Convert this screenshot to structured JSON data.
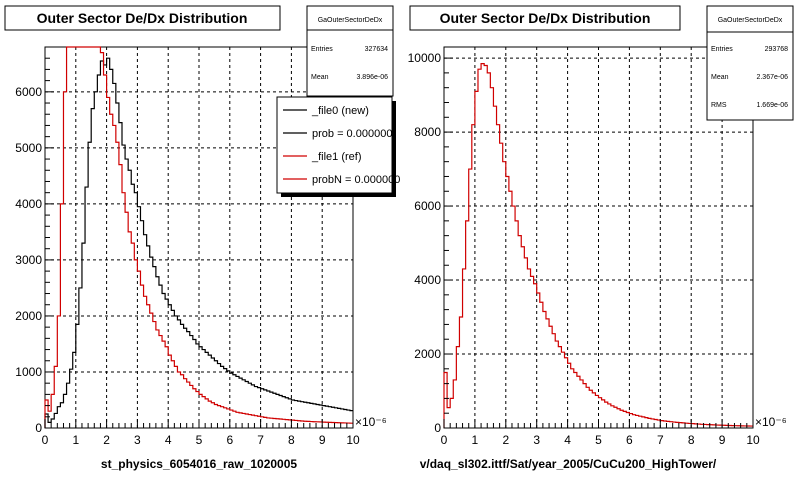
{
  "chart_data": [
    {
      "type": "histogram",
      "title": "Outer Sector De/Dx Distribution",
      "xlabel": "st_physics_6054016_raw_1020005",
      "x_exponent": "×10⁻⁶",
      "xlim": [
        0,
        10
      ],
      "ylim": [
        0,
        6800
      ],
      "xticks": [
        0,
        1,
        2,
        3,
        4,
        5,
        6,
        7,
        8,
        9,
        10
      ],
      "yticks": [
        0,
        1000,
        2000,
        3000,
        4000,
        5000,
        6000
      ],
      "grid": true,
      "bin_width": 0.1,
      "stats": {
        "name": "GaOuterSectorDeDx",
        "rows": [
          {
            "label": "Entries",
            "value": "327634"
          },
          {
            "label": "Mean",
            "value": "3.896e-06"
          }
        ]
      },
      "legend": {
        "placement": "top-right",
        "entries": [
          {
            "label": "_file0 (new)",
            "color": "#000000"
          },
          {
            "label": "prob = 0.000000",
            "color": "#000000"
          },
          {
            "label": "_file1 (ref)",
            "color": "#d00000"
          },
          {
            "label": "probN = 0.000000",
            "color": "#d00000"
          }
        ]
      },
      "series": [
        {
          "color": "#000000",
          "x_start": 0,
          "values": [
            250,
            100,
            160,
            260,
            380,
            450,
            600,
            800,
            1050,
            1350,
            1850,
            2500,
            3300,
            4300,
            5100,
            5700,
            6000,
            6300,
            6550,
            6480,
            6600,
            6400,
            6150,
            5800,
            5450,
            5050,
            4800,
            4600,
            4350,
            4200,
            3950,
            3700,
            3450,
            3250,
            3050,
            2880,
            2700,
            2550,
            2400,
            2300,
            2200,
            2100,
            2000,
            1930,
            1850,
            1780,
            1720,
            1650,
            1580,
            1500,
            1450,
            1400,
            1350,
            1300,
            1250,
            1200,
            1150,
            1100,
            1060,
            1020,
            980,
            950,
            920,
            890,
            860,
            830,
            800,
            770,
            740,
            720,
            700,
            680,
            660,
            640,
            620,
            600,
            580,
            560,
            540,
            520,
            500,
            490,
            480,
            470,
            460,
            450,
            440,
            430,
            420,
            410,
            400,
            390,
            380,
            370,
            360,
            350,
            340,
            330,
            320,
            310
          ]
        },
        {
          "color": "#d00000",
          "x_start": 0,
          "values": [
            500,
            300,
            600,
            1100,
            2000,
            4000,
            6000,
            6800,
            6800,
            6800,
            6800,
            6800,
            6800,
            6800,
            6800,
            6800,
            6800,
            6800,
            6700,
            6300,
            5900,
            5600,
            5400,
            5100,
            4700,
            4200,
            3850,
            3500,
            3300,
            3000,
            2800,
            2550,
            2350,
            2200,
            2050,
            1900,
            1750,
            1650,
            1550,
            1450,
            1300,
            1200,
            1100,
            1000,
            950,
            880,
            820,
            760,
            700,
            650,
            600,
            560,
            520,
            480,
            450,
            420,
            400,
            380,
            360,
            340,
            320,
            300,
            280,
            270,
            260,
            250,
            240,
            230,
            220,
            210,
            200,
            190,
            180,
            175,
            170,
            165,
            160,
            155,
            150,
            145,
            140,
            135,
            130,
            125,
            120,
            118,
            115,
            112,
            110,
            108,
            105,
            102,
            100,
            98,
            96,
            94,
            92,
            90,
            88,
            86
          ]
        }
      ]
    },
    {
      "type": "histogram",
      "title": "Outer Sector De/Dx Distribution",
      "xlabel": "v/daq_sl302.ittf/Sat/year_2005/CuCu200_HighTower/",
      "x_exponent": "×10⁻⁶",
      "xlim": [
        0,
        10
      ],
      "ylim": [
        0,
        10300
      ],
      "xticks": [
        0,
        1,
        2,
        3,
        4,
        5,
        6,
        7,
        8,
        9,
        10
      ],
      "yticks": [
        0,
        2000,
        4000,
        6000,
        8000,
        10000
      ],
      "grid": true,
      "bin_width": 0.1,
      "stats": {
        "name": "GaOuterSectorDeDx",
        "rows": [
          {
            "label": "Entries",
            "value": "293768"
          },
          {
            "label": "Mean",
            "value": "2.367e-06"
          },
          {
            "label": "RMS",
            "value": "1.669e-06"
          }
        ]
      },
      "series": [
        {
          "color": "#d00000",
          "x_start": 0,
          "values": [
            1500,
            550,
            800,
            1300,
            2200,
            3000,
            4300,
            5600,
            7000,
            8200,
            9100,
            9700,
            9850,
            9800,
            9600,
            9200,
            8700,
            8200,
            7700,
            7200,
            6800,
            6400,
            6000,
            5600,
            5200,
            4900,
            4600,
            4300,
            4100,
            3900,
            3650,
            3400,
            3150,
            2950,
            2750,
            2550,
            2350,
            2200,
            2050,
            1900,
            1750,
            1600,
            1500,
            1400,
            1300,
            1200,
            1100,
            1020,
            950,
            880,
            820,
            760,
            700,
            650,
            600,
            560,
            520,
            480,
            450,
            420,
            390,
            360,
            340,
            320,
            300,
            280,
            260,
            245,
            230,
            215,
            200,
            190,
            180,
            170,
            160,
            152,
            145,
            138,
            130,
            124,
            118,
            112,
            106,
            100,
            96,
            92,
            88,
            84,
            80,
            77,
            74,
            71,
            68,
            65,
            62,
            60,
            58,
            56,
            54,
            52
          ]
        }
      ]
    }
  ]
}
